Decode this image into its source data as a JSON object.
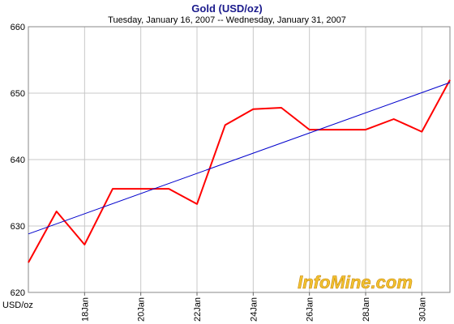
{
  "chart_data": {
    "type": "line",
    "title": "Gold (USD/oz)",
    "subtitle": "Tuesday, January 16, 2007  --  Wednesday, January 31, 2007",
    "ylabel": "USD/oz",
    "ylim": [
      620,
      660
    ],
    "yticks": [
      "620",
      "630",
      "640",
      "650",
      "660"
    ],
    "xlim": [
      "2007-01-16",
      "2007-01-31"
    ],
    "xtick_labels": [
      {
        "date": "2007-01-18",
        "label": "18Jan"
      },
      {
        "date": "2007-01-20",
        "label": "20Jan"
      },
      {
        "date": "2007-01-22",
        "label": "22Jan"
      },
      {
        "date": "2007-01-24",
        "label": "24Jan"
      },
      {
        "date": "2007-01-26",
        "label": "26Jan"
      },
      {
        "date": "2007-01-28",
        "label": "28Jan"
      },
      {
        "date": "2007-01-30",
        "label": "30Jan"
      }
    ],
    "grid": true,
    "series": [
      {
        "color": "#ff0000",
        "x": [
          "2007-01-16",
          "2007-01-17",
          "2007-01-18",
          "2007-01-19",
          "2007-01-20",
          "2007-01-21",
          "2007-01-22",
          "2007-01-23",
          "2007-01-24",
          "2007-01-25",
          "2007-01-26",
          "2007-01-27",
          "2007-01-28",
          "2007-01-29",
          "2007-01-30",
          "2007-01-31"
        ],
        "y": [
          624.5,
          632.2,
          627.2,
          635.6,
          635.6,
          635.6,
          633.3,
          645.2,
          647.6,
          647.8,
          644.5,
          644.5,
          644.5,
          646.1,
          644.2,
          652.0
        ]
      },
      {
        "color": "#0000cc",
        "x": [
          "2007-01-16",
          "2007-01-31"
        ],
        "y": [
          628.8,
          651.6
        ]
      }
    ],
    "watermark": "InfoMine.com"
  }
}
